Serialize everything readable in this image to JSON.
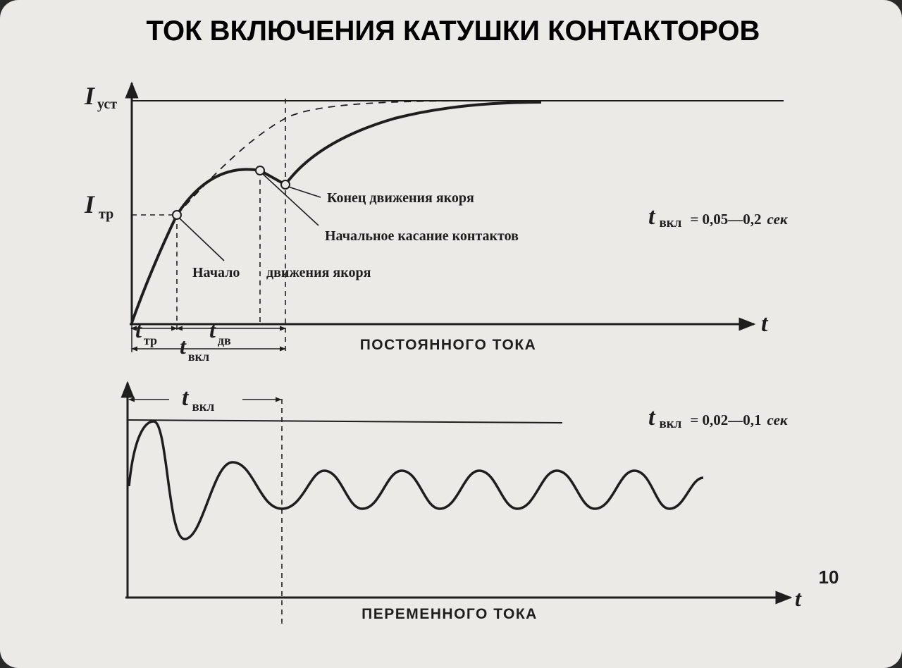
{
  "title": "ТОК ВКЛЮЧЕНИЯ КАТУШКИ КОНТАКТОРОВ",
  "dc": {
    "y_steady_symbol": "I",
    "y_steady_sub": "уст",
    "y_pickup_symbol": "I",
    "y_pickup_sub": "тр",
    "x_axis_label": "t",
    "t_tr_symbol": "t",
    "t_tr_sub": "тр",
    "t_dv_symbol": "t",
    "t_dv_sub": "дв",
    "t_on_symbol": "t",
    "t_on_sub": "вкл",
    "annotation_end_motion": "Конец движения якоря",
    "annotation_contact": "Начальное касание контактов",
    "annotation_start_motion_1": "Начало",
    "annotation_start_motion_2": "движения якоря",
    "caption": "ПОСТОЯННОГО ТОКА",
    "formula_symbol": "t",
    "formula_sub": "вкл",
    "formula_value": "= 0,05—0,2",
    "formula_unit": "сек"
  },
  "ac": {
    "t_on_symbol": "t",
    "t_on_sub": "вкл",
    "x_axis_label": "t",
    "caption": "ПЕРЕМЕННОГО ТОКА",
    "formula_symbol": "t",
    "formula_sub": "вкл",
    "formula_value": "= 0,02—0,1",
    "formula_unit": "сек"
  },
  "slide_number": "10"
}
